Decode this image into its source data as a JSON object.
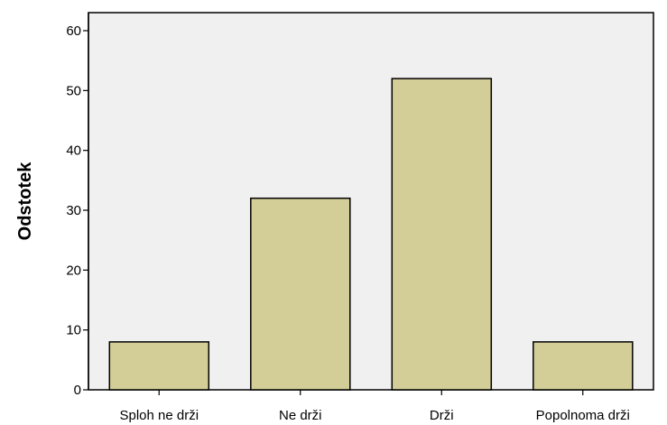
{
  "chart_data": {
    "type": "bar",
    "categories": [
      "Sploh ne drži",
      "Ne drži",
      "Drži",
      "Popolnoma drži"
    ],
    "values": [
      8,
      32,
      52,
      8
    ],
    "title": "",
    "xlabel": "",
    "ylabel": "Odstotek",
    "ylim": [
      0,
      60
    ],
    "yticks": [
      0,
      10,
      20,
      30,
      40,
      50,
      60
    ],
    "grid": false,
    "legend": "none",
    "colors": {
      "bar_fill": "#D3CE97",
      "bar_stroke": "#000000",
      "plot_background": "#F0F0F0",
      "page_background": "#FFFFFF"
    }
  }
}
